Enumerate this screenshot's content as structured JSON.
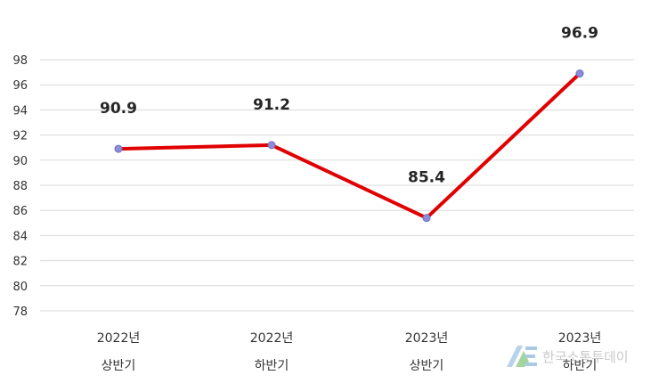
{
  "chart_data": {
    "type": "line",
    "categories": [
      [
        "2022년",
        "상반기"
      ],
      [
        "2022년",
        "하반기"
      ],
      [
        "2023년",
        "상반기"
      ],
      [
        "2023년",
        "하반기"
      ]
    ],
    "series": [
      {
        "values": [
          90.9,
          91.2,
          85.4,
          96.9
        ],
        "color": "#e00000",
        "marker_color": "#8e8cd8"
      }
    ],
    "data_labels": [
      "90.9",
      "91.2",
      "85.4",
      "96.9"
    ],
    "ylim": [
      78,
      98
    ],
    "yticks": [
      "78",
      "80",
      "82",
      "84",
      "86",
      "88",
      "90",
      "92",
      "94",
      "96",
      "98"
    ],
    "grid": true,
    "title": "",
    "xlabel": "",
    "ylabel": ""
  },
  "watermark": {
    "text": "한국소통투데이",
    "logo_icon": "ae-logo-icon"
  }
}
